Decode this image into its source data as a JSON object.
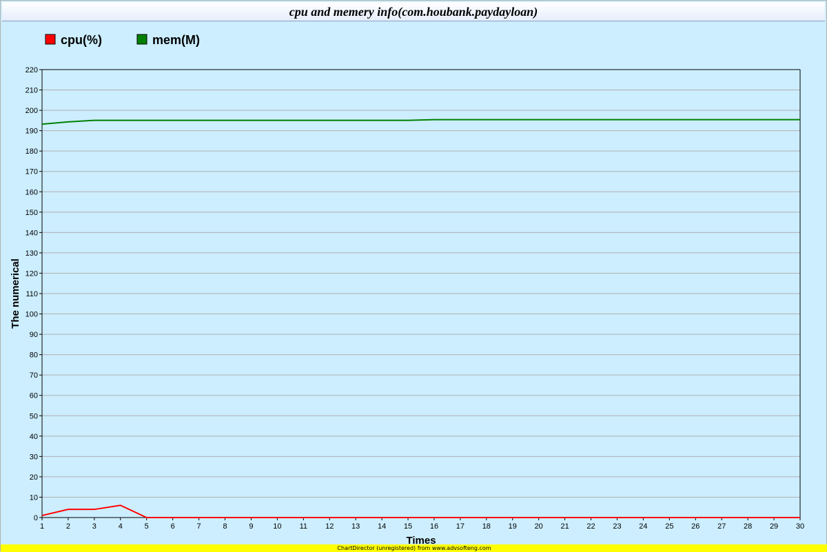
{
  "chart_data": {
    "type": "line",
    "title": "cpu and memery info(com.houbank.paydayloan)",
    "xlabel": "Times",
    "ylabel": "The numerical",
    "ylim": [
      0,
      220
    ],
    "yticks": [
      0,
      10,
      20,
      30,
      40,
      50,
      60,
      70,
      80,
      90,
      100,
      110,
      120,
      130,
      140,
      150,
      160,
      170,
      180,
      190,
      200,
      210,
      220
    ],
    "x": [
      1,
      2,
      3,
      4,
      5,
      6,
      7,
      8,
      9,
      10,
      11,
      12,
      13,
      14,
      15,
      16,
      17,
      18,
      19,
      20,
      21,
      22,
      23,
      24,
      25,
      26,
      27,
      28,
      29,
      30
    ],
    "grid": true,
    "legend_position": "top-left",
    "series": [
      {
        "name": "cpu(%)",
        "color": "#ff0000",
        "values": [
          1,
          4,
          4,
          6,
          0,
          0,
          0,
          0,
          0,
          0,
          0,
          0,
          0,
          0,
          0,
          0,
          0,
          0,
          0,
          0,
          0,
          0,
          0,
          0,
          0,
          0,
          0,
          0,
          0,
          0
        ]
      },
      {
        "name": "mem(M)",
        "color": "#008000",
        "values": [
          193.2,
          194.3,
          195.1,
          195.1,
          195.1,
          195.1,
          195.1,
          195.1,
          195.1,
          195.1,
          195.1,
          195.1,
          195.1,
          195.1,
          195.1,
          195.4,
          195.4,
          195.4,
          195.4,
          195.4,
          195.4,
          195.4,
          195.4,
          195.4,
          195.4,
          195.4,
          195.4,
          195.4,
          195.4,
          195.4
        ]
      }
    ]
  },
  "footer": {
    "watermark": "ChartDirector (unregistered) from www.advsofteng.com"
  }
}
